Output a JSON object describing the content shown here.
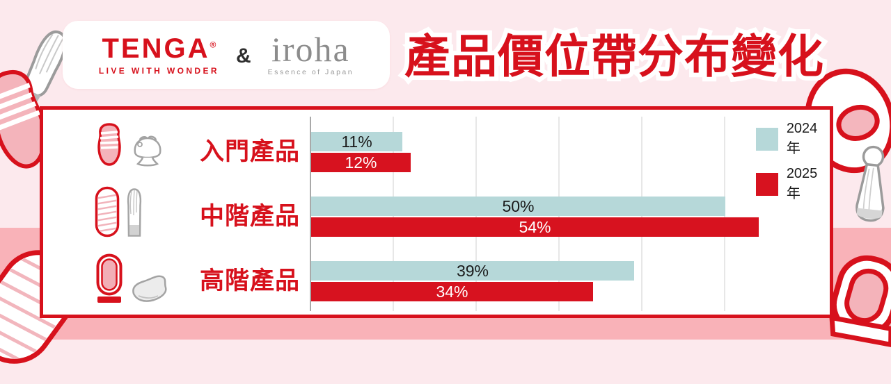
{
  "header": {
    "logo_tenga": {
      "wordmark": "TENGA",
      "registered": "®",
      "tagline": "LIVE WITH WONDER"
    },
    "ampersand": "&",
    "logo_iroha": {
      "wordmark": "iroha",
      "tagline": "Essence of Japan"
    },
    "title": "產品價位帶分布變化"
  },
  "chart_data": {
    "type": "bar",
    "orientation": "horizontal",
    "title": "產品價位帶分布變化",
    "categories": [
      "入門產品",
      "中階產品",
      "高階產品"
    ],
    "series": [
      {
        "name": "2024年",
        "color": "#b6d8d9",
        "label_color": "#1a1a1a",
        "values": [
          11,
          50,
          39
        ],
        "labels": [
          "11%",
          "50%",
          "39%"
        ]
      },
      {
        "name": "2025年",
        "color": "#d7121f",
        "label_color": "#ffffff",
        "values": [
          12,
          54,
          34
        ],
        "labels": [
          "12%",
          "54%",
          "34%"
        ]
      }
    ],
    "value_suffix": "%",
    "xlim": [
      0,
      55
    ],
    "gridline_interval": 10,
    "grid": true,
    "legend_position": "top-right",
    "category_icons": [
      [
        "tenga-cup-icon",
        "iroha-petit-icon"
      ],
      [
        "tenga-soft-tube-icon",
        "iroha-stick-icon"
      ],
      [
        "tenga-flip-icon",
        "iroha-curve-icon"
      ]
    ]
  },
  "decorations": [
    "iroha-stick-illustration-top-left",
    "tenga-cup-illustration-top-left",
    "tenga-spiral-tube-illustration-bottom-left",
    "tenga-egg-illustration-top-right",
    "iroha-kokeshi-illustration-right",
    "tenga-flip-illustration-bottom-right"
  ],
  "colors": {
    "accent_red": "#d7111c",
    "accent_blue": "#b6d8d9",
    "bg_top": "#fce9ed",
    "bg_bottom": "#f9b2b8",
    "panel_bg": "#ffffff",
    "axis": "#a9a9a9",
    "gridline": "#e7e7e7"
  }
}
